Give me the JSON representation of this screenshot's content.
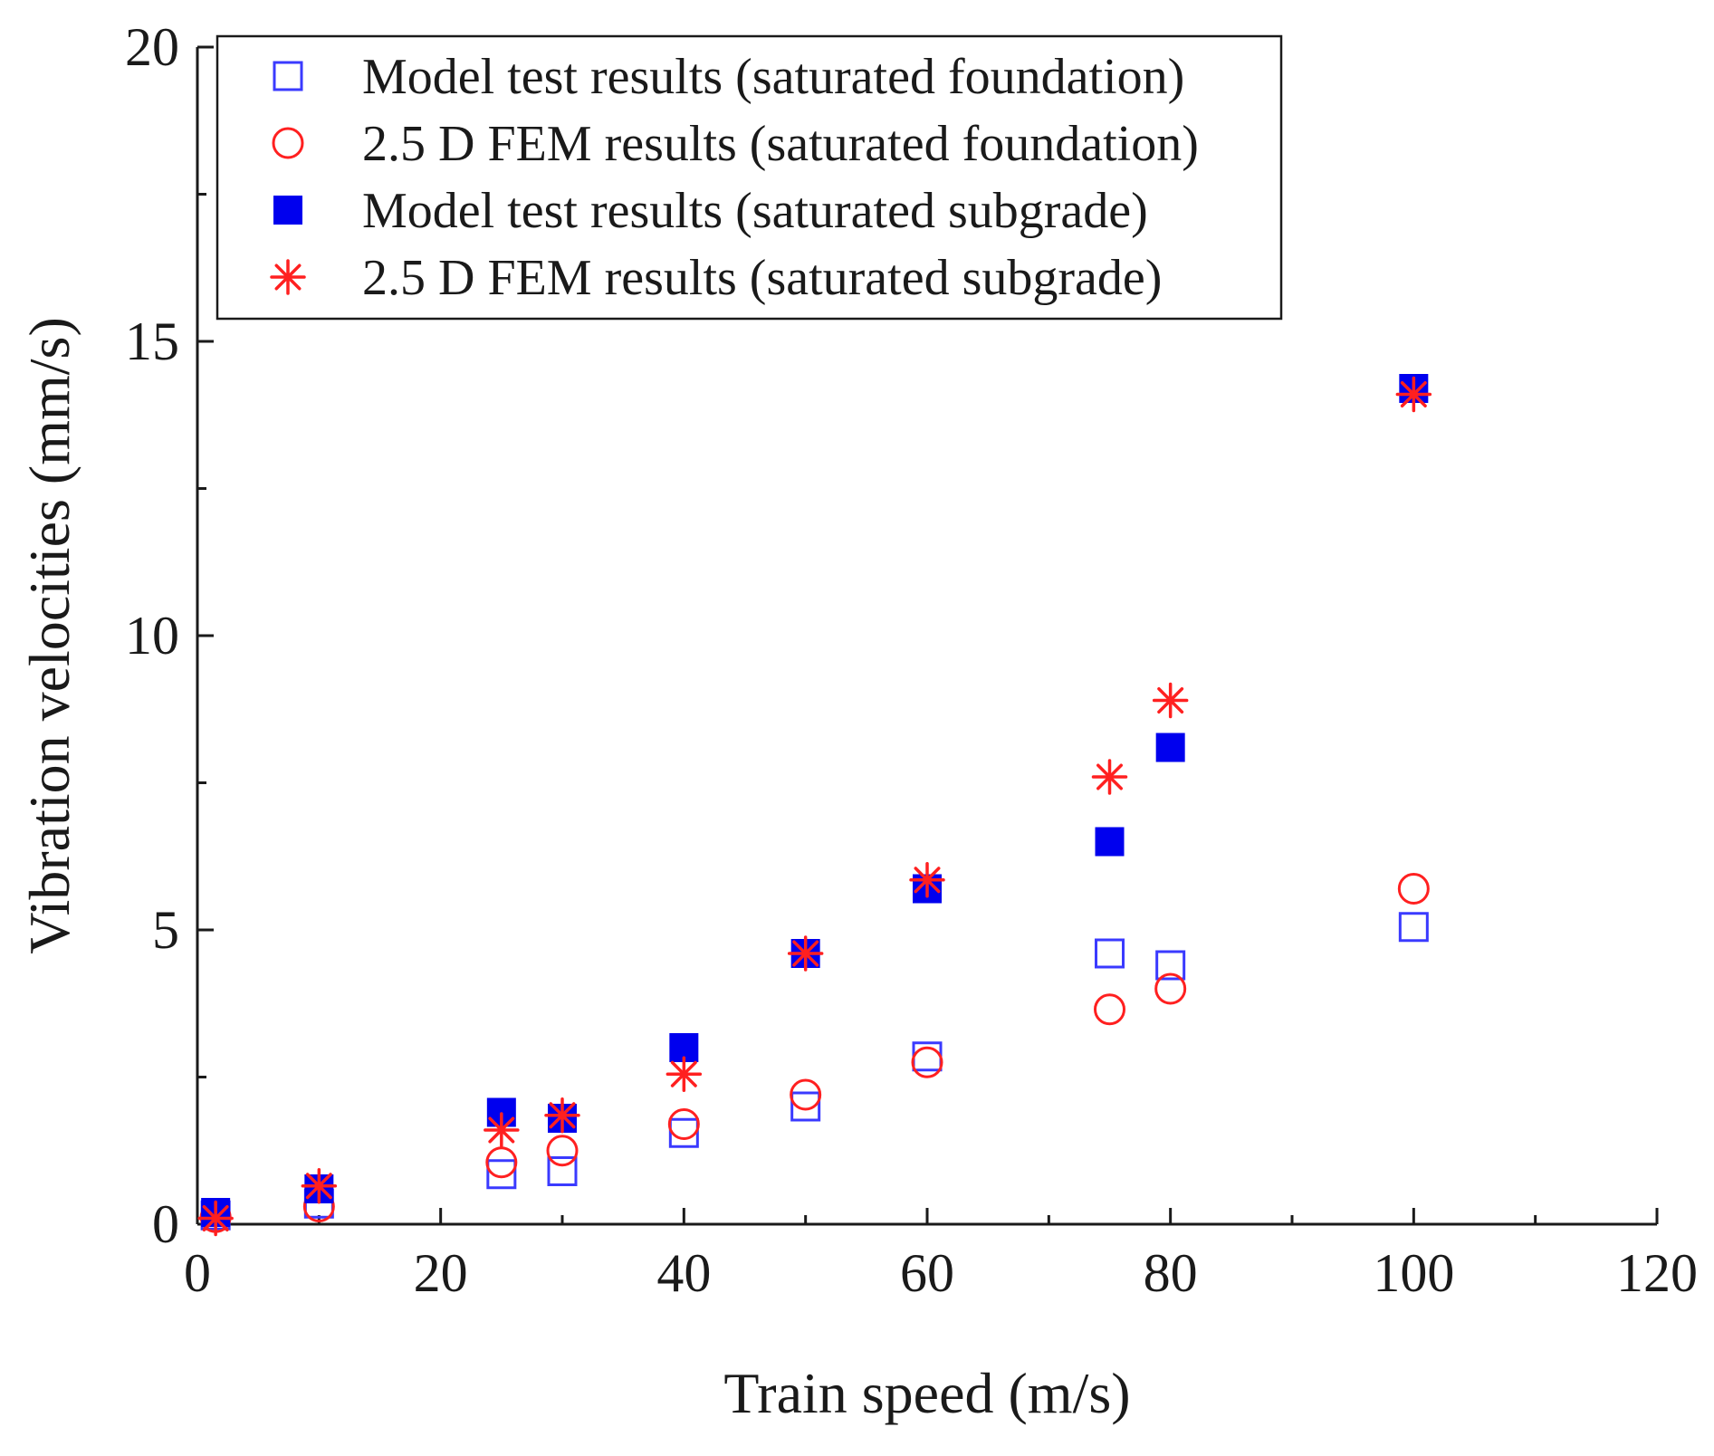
{
  "chart_data": {
    "type": "scatter",
    "xlabel": "Train speed (m/s)",
    "ylabel": "Vibration velocities (mm/s)",
    "xlim": [
      0,
      120
    ],
    "ylim": [
      0,
      20
    ],
    "xticks": [
      0,
      20,
      40,
      60,
      80,
      100,
      120
    ],
    "yticks": [
      0,
      5,
      10,
      15,
      20
    ],
    "grid": false,
    "legend_position": "top-right",
    "series": [
      {
        "name": "Model test results (saturated foundation)",
        "marker": "open-square",
        "color": "#3a3aff",
        "x": [
          1.5,
          10,
          25,
          30,
          40,
          50,
          60,
          75,
          80,
          100
        ],
        "y": [
          0.15,
          0.35,
          0.85,
          0.9,
          1.55,
          2.0,
          2.85,
          4.6,
          4.4,
          5.05
        ]
      },
      {
        "name": "2.5 D FEM results (saturated foundation)",
        "marker": "open-circle",
        "color": "#ff2020",
        "x": [
          1.5,
          10,
          25,
          30,
          40,
          50,
          60,
          75,
          80,
          100
        ],
        "y": [
          0.12,
          0.3,
          1.05,
          1.25,
          1.7,
          2.2,
          2.75,
          3.65,
          4.0,
          5.7
        ]
      },
      {
        "name": "Model test results (saturated subgrade)",
        "marker": "filled-square",
        "color": "#0000ee",
        "x": [
          1.5,
          10,
          25,
          30,
          40,
          50,
          60,
          75,
          80,
          100
        ],
        "y": [
          0.2,
          0.6,
          1.9,
          1.8,
          3.0,
          4.6,
          5.7,
          6.5,
          8.1,
          14.2
        ]
      },
      {
        "name": "2.5 D FEM results (saturated subgrade)",
        "marker": "asterisk",
        "color": "#ff2020",
        "x": [
          1.5,
          10,
          25,
          30,
          40,
          50,
          60,
          75,
          80,
          100
        ],
        "y": [
          0.1,
          0.65,
          1.6,
          1.85,
          2.55,
          4.6,
          5.85,
          7.6,
          8.9,
          14.1
        ]
      }
    ]
  }
}
